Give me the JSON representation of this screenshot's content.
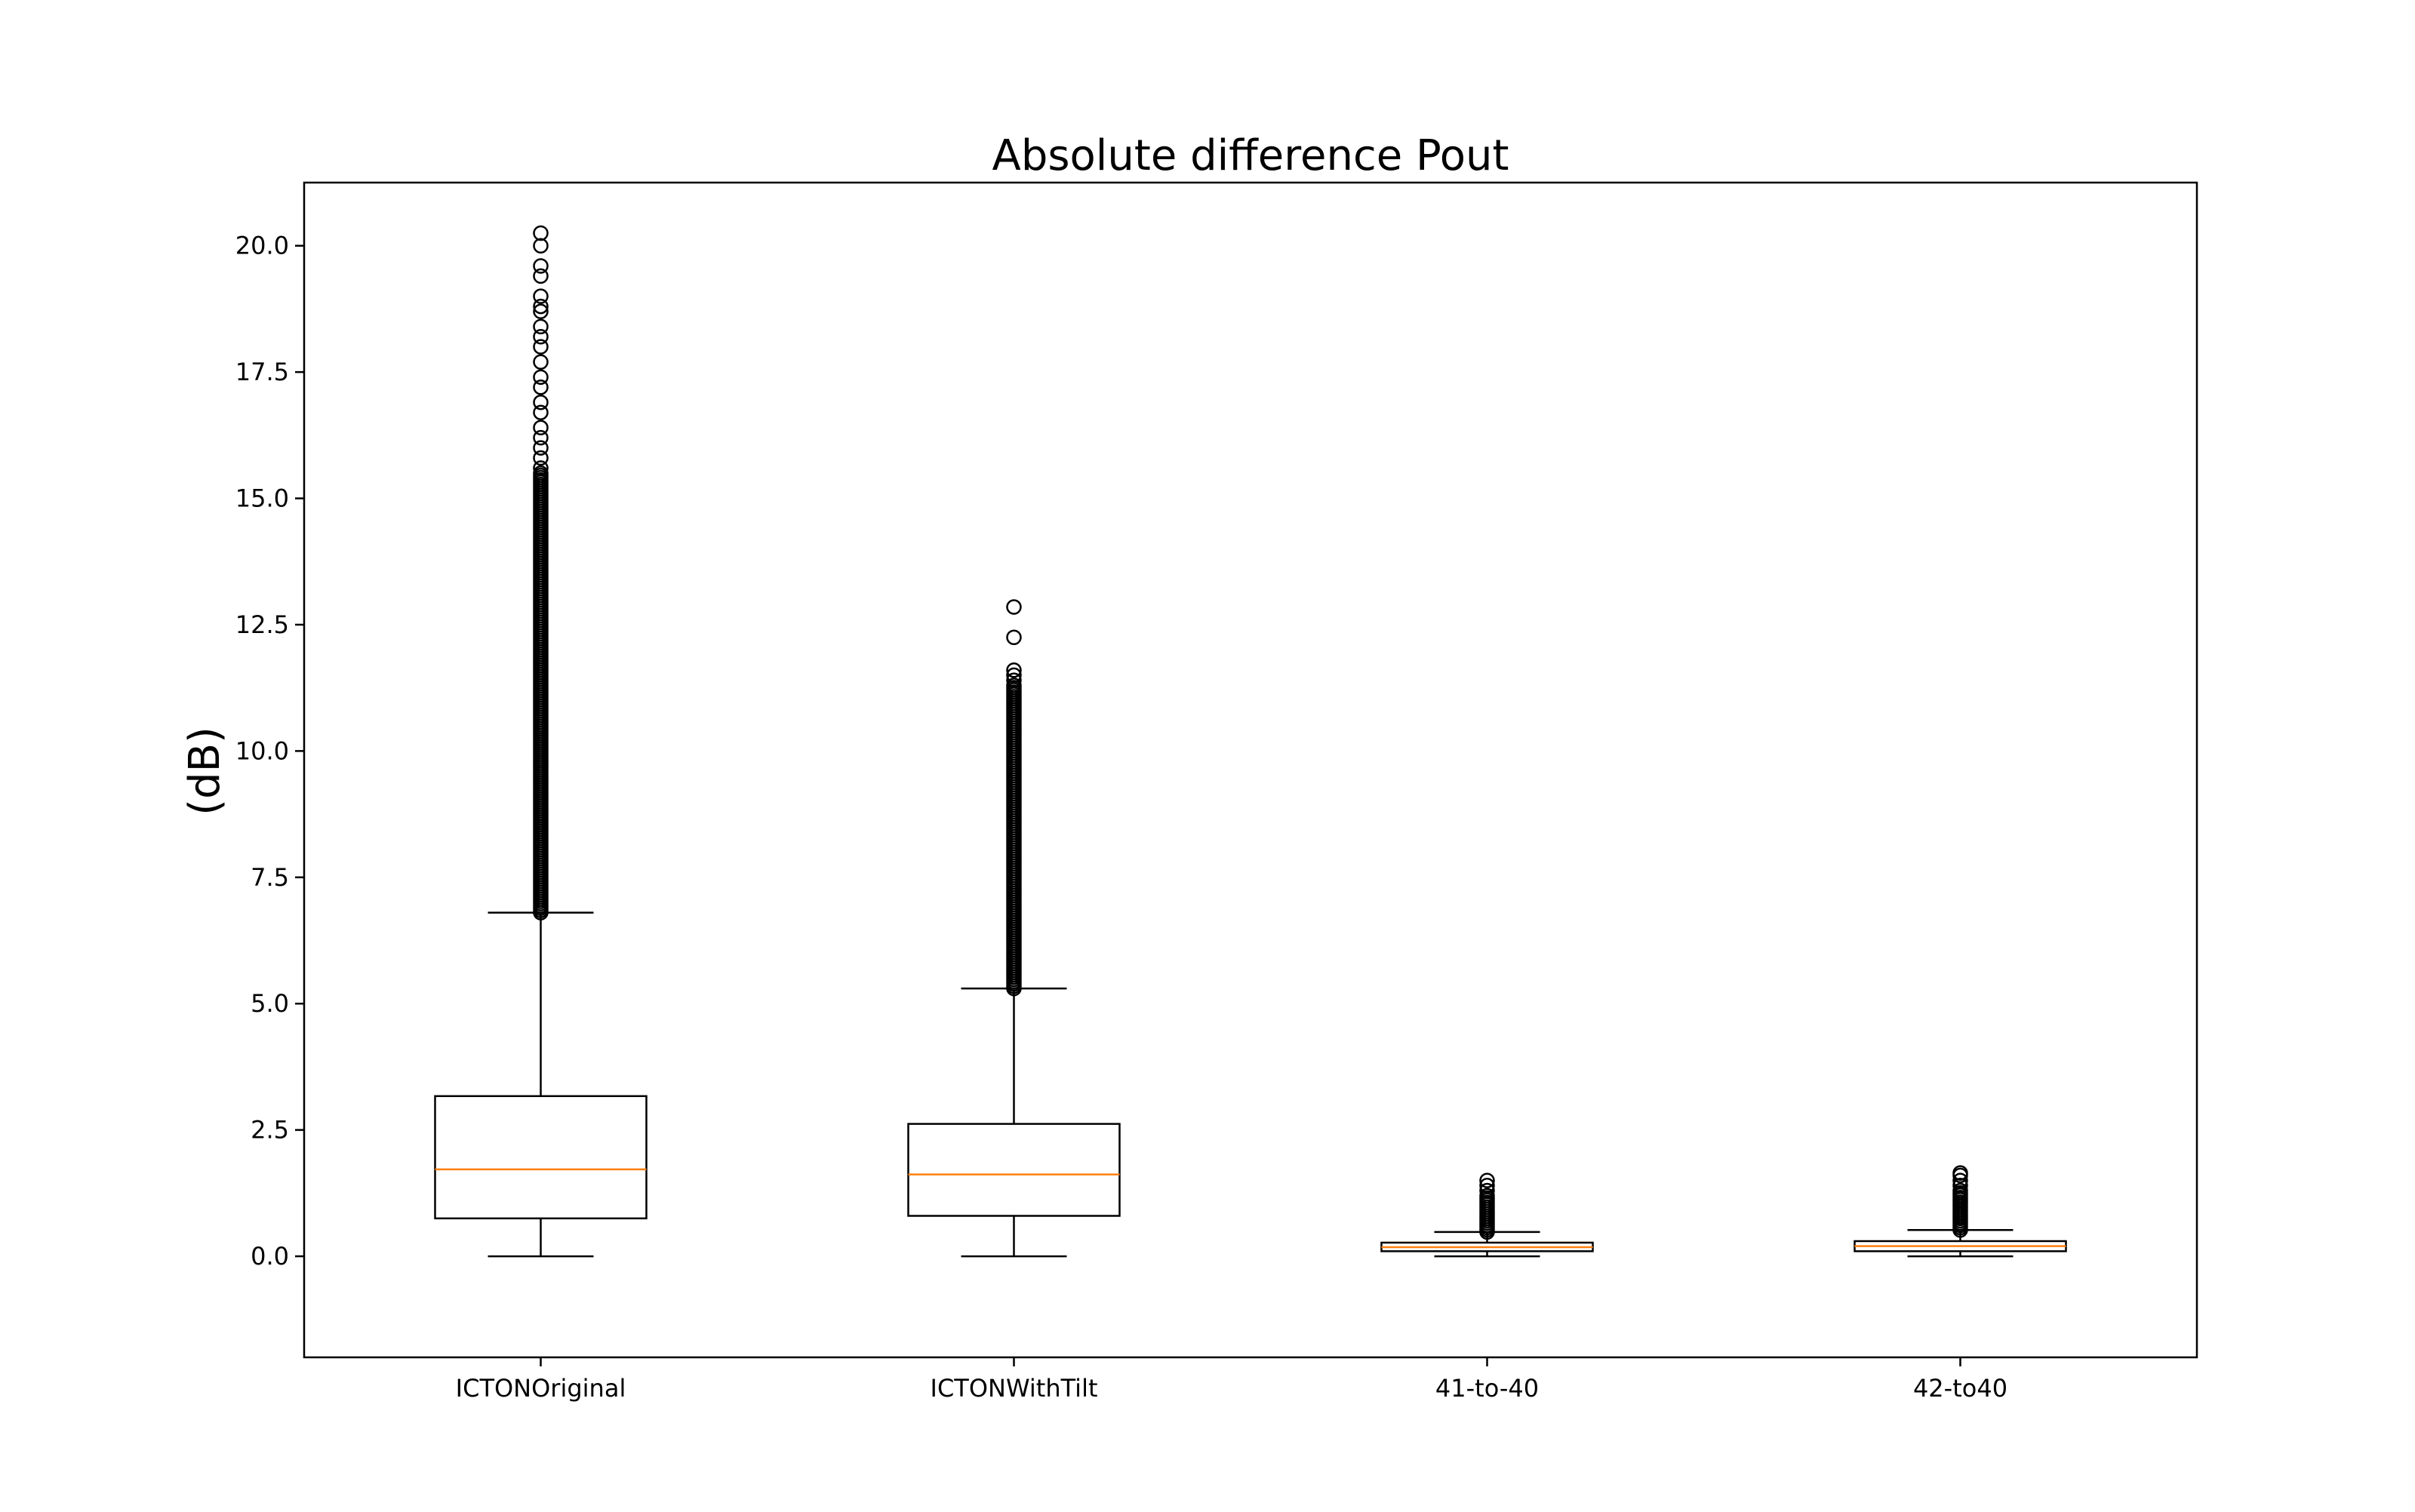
{
  "chart_data": {
    "type": "boxplot",
    "title": "Absolute difference Pout",
    "xlabel": "",
    "ylabel": "(dB)",
    "ylim": [
      -2.0,
      21.25
    ],
    "yticks": [
      0.0,
      2.5,
      5.0,
      7.5,
      10.0,
      12.5,
      15.0,
      17.5,
      20.0
    ],
    "ytick_labels": [
      "0.0",
      "2.5",
      "5.0",
      "7.5",
      "10.0",
      "12.5",
      "15.0",
      "17.5",
      "20.0"
    ],
    "categories": [
      "ICTONOriginal",
      "ICTONWithTilt",
      "41-to-40",
      "42-to40"
    ],
    "grid": false,
    "colors": {
      "box": "#000000",
      "median": "#ff7f0e",
      "flier": "#000000"
    },
    "boxes": [
      {
        "whislo": 0.0,
        "q1": 0.75,
        "med": 1.72,
        "q3": 3.17,
        "whishi": 6.8,
        "fliers_dense_range": [
          6.8,
          15.5
        ],
        "fliers": [
          15.6,
          15.8,
          16.0,
          16.2,
          16.4,
          16.7,
          16.9,
          17.2,
          17.4,
          17.7,
          18.0,
          18.2,
          18.4,
          18.7,
          18.8,
          19.0,
          19.4,
          19.6,
          20.0,
          20.25
        ]
      },
      {
        "whislo": 0.0,
        "q1": 0.8,
        "med": 1.62,
        "q3": 2.62,
        "whishi": 5.3,
        "fliers_dense_range": [
          5.3,
          11.3
        ],
        "fliers": [
          11.4,
          11.5,
          11.6,
          12.25,
          12.85
        ]
      },
      {
        "whislo": 0.0,
        "q1": 0.1,
        "med": 0.18,
        "q3": 0.27,
        "whishi": 0.48,
        "fliers_dense_range": [
          0.48,
          1.2
        ],
        "fliers": [
          1.3,
          1.4,
          1.5
        ]
      },
      {
        "whislo": 0.0,
        "q1": 0.1,
        "med": 0.2,
        "q3": 0.3,
        "whishi": 0.52,
        "fliers_dense_range": [
          0.52,
          1.3
        ],
        "fliers": [
          1.4,
          1.5,
          1.6,
          1.65
        ]
      }
    ]
  }
}
